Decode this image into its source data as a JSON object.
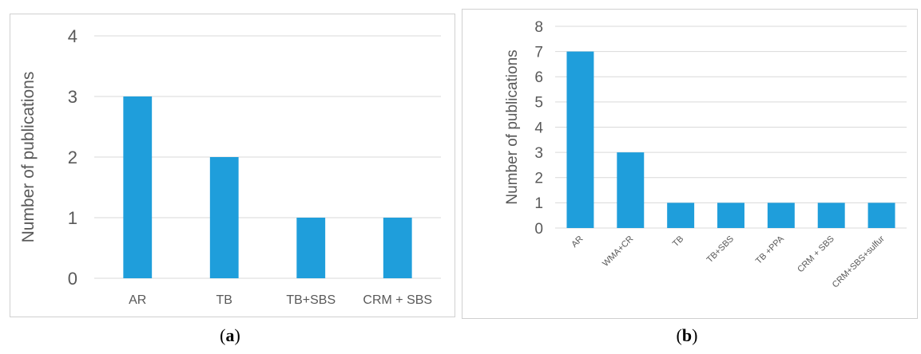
{
  "chart_data": [
    {
      "type": "bar",
      "panel_label": "a",
      "categories": [
        "AR",
        "TB",
        "TB+SBS",
        "CRM + SBS"
      ],
      "values": [
        3,
        2,
        1,
        1
      ],
      "ylabel": "Number of publications",
      "ylim": [
        0,
        4
      ],
      "yticks": [
        0,
        1,
        2,
        3,
        4
      ],
      "grid": true,
      "bar_color": "#1f9edb"
    },
    {
      "type": "bar",
      "panel_label": "b",
      "categories": [
        "AR",
        "WMA+CR",
        "TB",
        "TB+SBS",
        "TB +PPA",
        "CRM + SBS",
        "CRM+SBS+sulfur"
      ],
      "values": [
        7,
        3,
        1,
        1,
        1,
        1,
        1
      ],
      "ylabel": "Number of publications",
      "ylim": [
        0,
        8
      ],
      "yticks": [
        0,
        1,
        2,
        3,
        4,
        5,
        6,
        7,
        8
      ],
      "grid": true,
      "bar_color": "#1f9edb"
    }
  ]
}
